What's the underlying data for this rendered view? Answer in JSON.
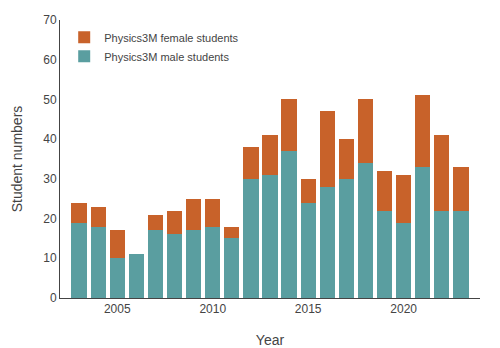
{
  "chart_data": {
    "type": "bar",
    "stacked": true,
    "x": [
      2003,
      2004,
      2005,
      2006,
      2007,
      2008,
      2009,
      2010,
      2011,
      2012,
      2013,
      2014,
      2015,
      2016,
      2017,
      2018,
      2019,
      2020,
      2021,
      2022,
      2023
    ],
    "series": [
      {
        "name": "Physics3M male students",
        "color": "#5a9ea0",
        "values": [
          19,
          18,
          10,
          11,
          17,
          16,
          17,
          18,
          15,
          30,
          31,
          37,
          24,
          28,
          30,
          34,
          22,
          19,
          33,
          22,
          22
        ]
      },
      {
        "name": "Physics3M female students",
        "color": "#c8622a",
        "values": [
          5,
          5,
          7,
          0,
          4,
          6,
          8,
          7,
          3,
          8,
          10,
          13,
          6,
          19,
          10,
          16,
          10,
          12,
          18,
          19,
          11
        ]
      }
    ],
    "xlabel": "Year",
    "ylabel": "Student numbers",
    "xlim": [
      2002,
      2024
    ],
    "xticks": [
      2005,
      2010,
      2015,
      2020
    ],
    "ylim": [
      0,
      70
    ],
    "yticks": [
      0,
      10,
      20,
      30,
      40,
      50,
      60,
      70
    ],
    "grid": false,
    "legend": "upper left"
  }
}
